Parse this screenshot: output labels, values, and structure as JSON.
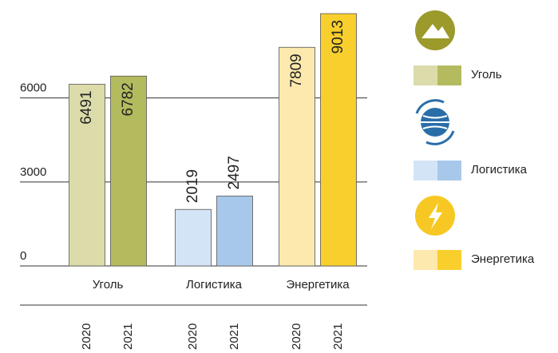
{
  "chart_data": {
    "type": "bar",
    "categories": [
      "Уголь",
      "Логистика",
      "Энергетика"
    ],
    "series": [
      {
        "name": "2020",
        "colors": [
          "#dcdcab",
          "#d3e4f6",
          "#fde9ad"
        ],
        "values": [
          6491,
          2019,
          7809
        ]
      },
      {
        "name": "2021",
        "colors": [
          "#b4bb5f",
          "#a8c8eb",
          "#f8cf2c"
        ],
        "values": [
          6782,
          2497,
          9013
        ]
      }
    ],
    "ylim": [
      0,
      9500
    ],
    "yticks": [
      0,
      3000,
      6000
    ],
    "grid": true
  }
}
